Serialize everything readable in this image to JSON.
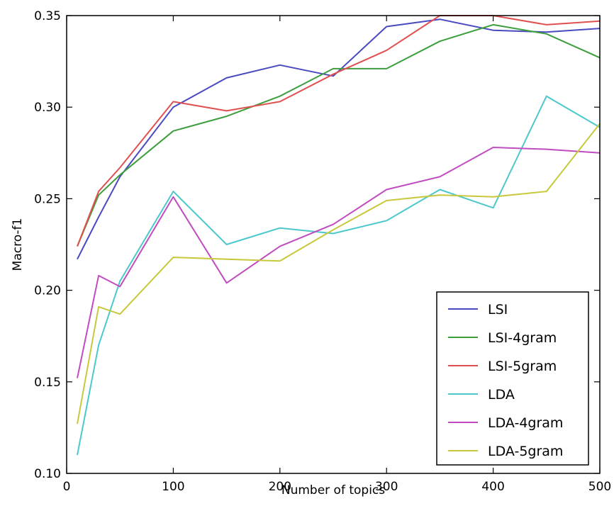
{
  "chart_data": {
    "type": "line",
    "title": "",
    "xlabel": "Number of topics",
    "ylabel": "Macro-f1",
    "xlim": [
      0,
      500
    ],
    "ylim": [
      0.1,
      0.35
    ],
    "x_ticks": [
      "0",
      "100",
      "200",
      "300",
      "400",
      "500"
    ],
    "y_ticks": [
      "0.10",
      "0.15",
      "0.20",
      "0.25",
      "0.30",
      "0.35"
    ],
    "grid": false,
    "legend_position": "bottom-right",
    "x": [
      10,
      30,
      50,
      100,
      150,
      200,
      250,
      300,
      350,
      400,
      450,
      500
    ],
    "series": [
      {
        "name": "LSI",
        "color": "#4a4ac0",
        "values": [
          0.217,
          0.24,
          0.262,
          0.3,
          0.316,
          0.323,
          0.317,
          0.344,
          0.348,
          0.342,
          0.341,
          0.343
        ]
      },
      {
        "name": "LSI-4gram",
        "color": "#3c9e3c",
        "values": [
          0.224,
          0.252,
          0.263,
          0.287,
          0.295,
          0.306,
          0.321,
          0.321,
          0.336,
          0.345,
          0.34,
          0.327
        ]
      },
      {
        "name": "LSI-5gram",
        "color": "#e05050",
        "values": [
          0.224,
          0.254,
          0.267,
          0.303,
          0.298,
          0.303,
          0.318,
          0.331,
          0.35,
          0.35,
          0.345,
          0.347
        ]
      },
      {
        "name": "LDA",
        "color": "#4cc8cc",
        "values": [
          0.11,
          0.17,
          0.205,
          0.254,
          0.225,
          0.234,
          0.231,
          0.238,
          0.255,
          0.245,
          0.306,
          0.289
        ]
      },
      {
        "name": "LDA-4gram",
        "color": "#c04cc0",
        "values": [
          0.152,
          0.208,
          0.202,
          0.251,
          0.204,
          0.224,
          0.236,
          0.255,
          0.262,
          0.278,
          0.277,
          0.275
        ]
      },
      {
        "name": "LDA-5gram",
        "color": "#c8c83c",
        "values": [
          0.127,
          0.191,
          0.187,
          0.218,
          0.217,
          0.216,
          0.233,
          0.249,
          0.252,
          0.251,
          0.254,
          0.291
        ]
      }
    ]
  }
}
